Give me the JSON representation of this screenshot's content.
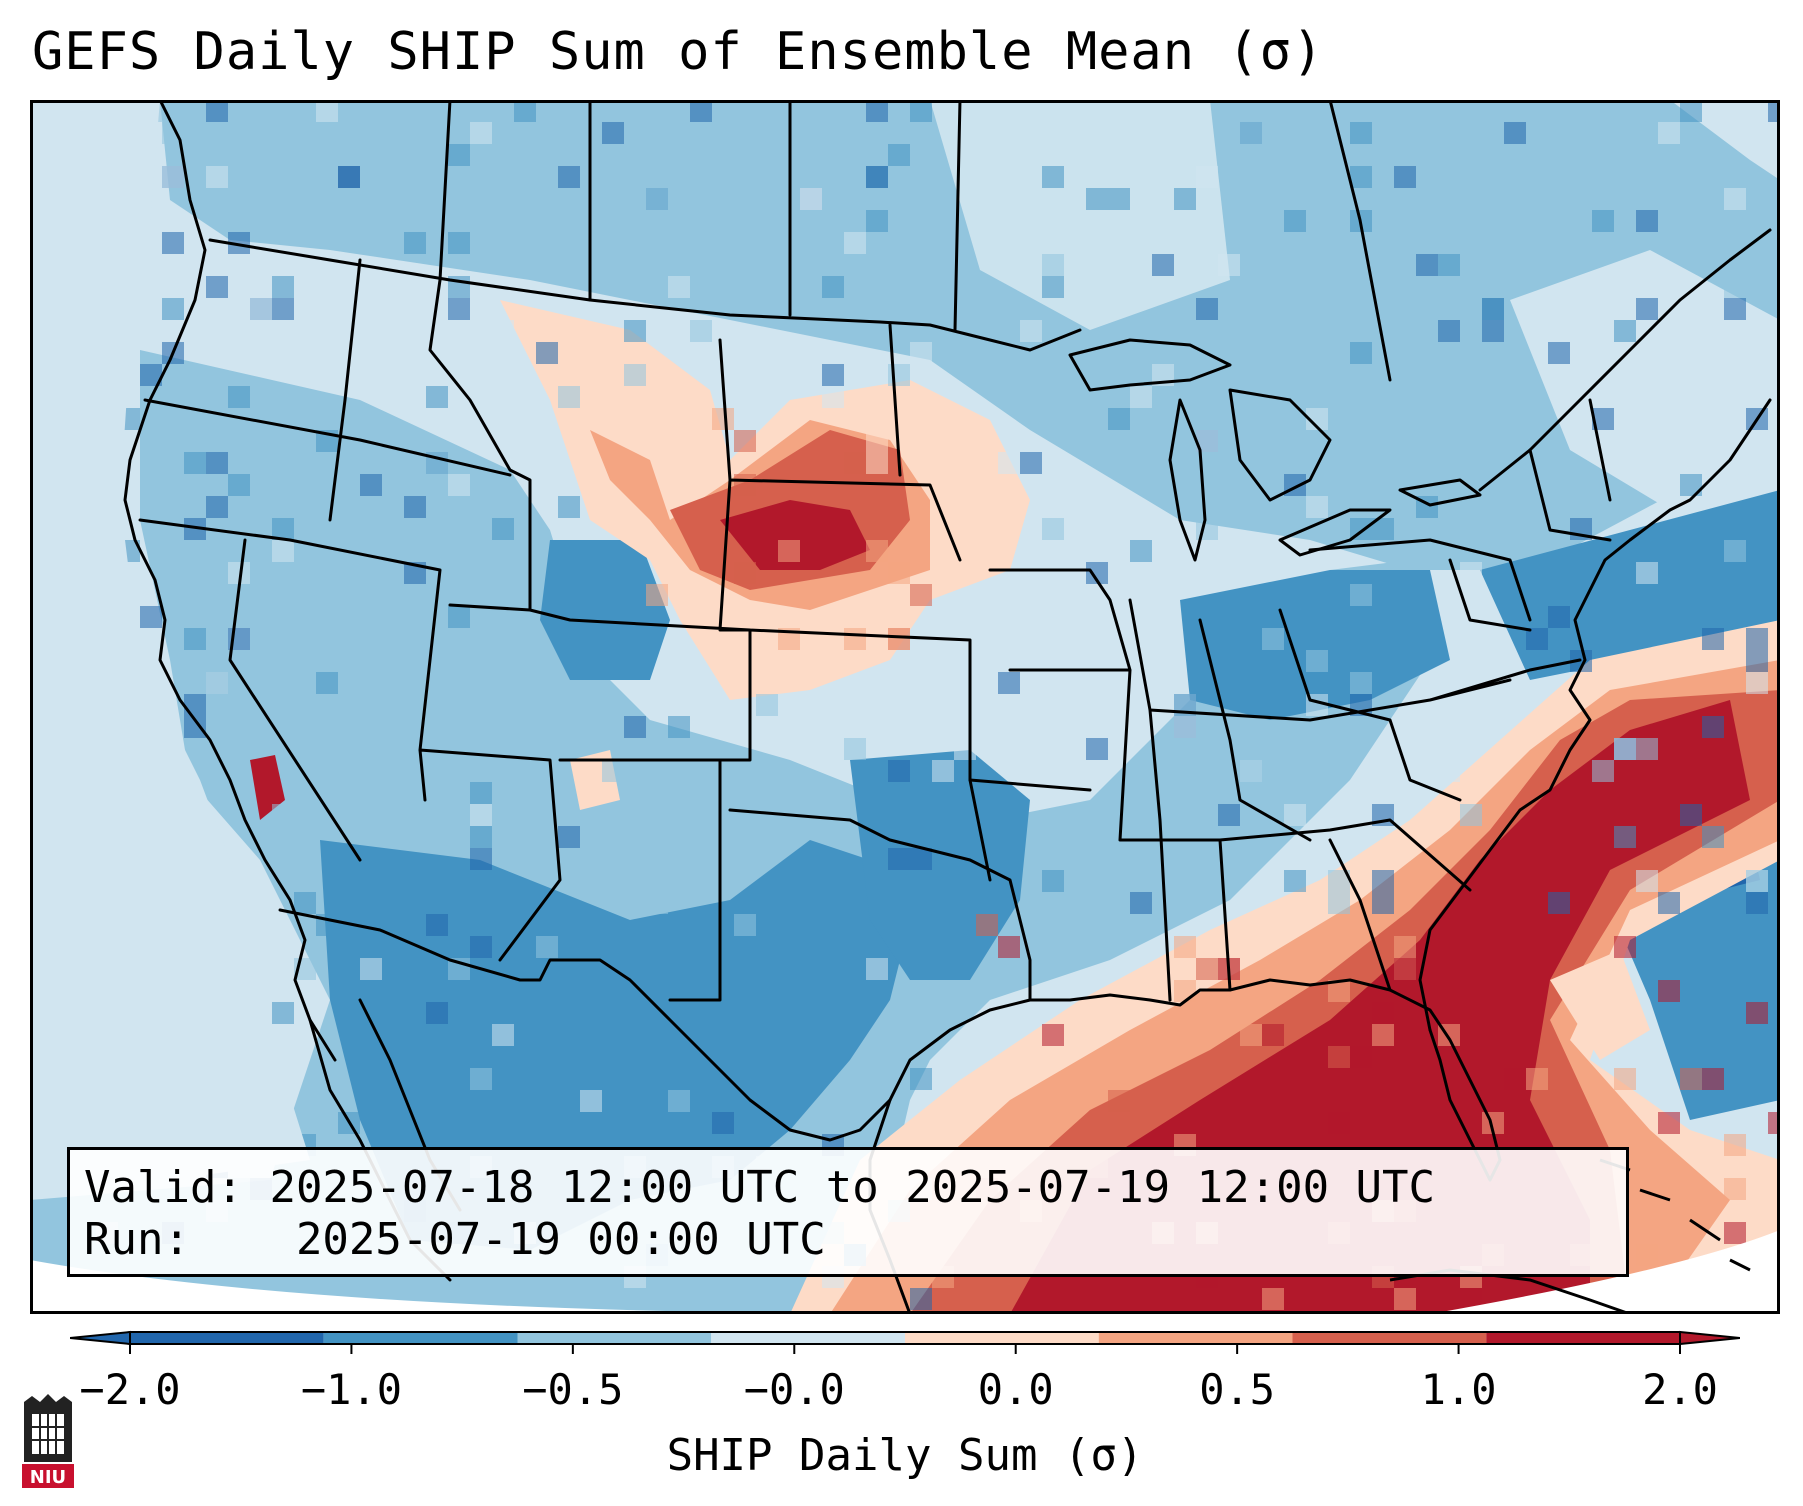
{
  "title": "GEFS Daily SHIP Sum of Ensemble Mean (σ)",
  "info": {
    "valid_label": "Valid:",
    "valid_value": "2025-07-18 12:00 UTC to 2025-07-19 12:00 UTC",
    "run_label": "Run:",
    "run_value": "2025-07-19 00:00 UTC"
  },
  "colorbar": {
    "label": "SHIP Daily Sum (σ)",
    "ticks": [
      "−2.0",
      "−1.0",
      "−0.5",
      "−0.0",
      "0.0",
      "0.5",
      "1.0",
      "2.0"
    ],
    "colors": [
      "#2166ac",
      "#4393c3",
      "#92c5de",
      "#d1e5f0",
      "#fddbc7",
      "#f4a582",
      "#d6604d",
      "#b2182b"
    ],
    "extend": "both"
  },
  "map": {
    "projection": "Lambert Conformal",
    "region": "Contiguous United States",
    "field": "SHIP daily sum anomaly",
    "background_color": "#d1e5f0"
  },
  "logo": {
    "text": "NIU"
  }
}
